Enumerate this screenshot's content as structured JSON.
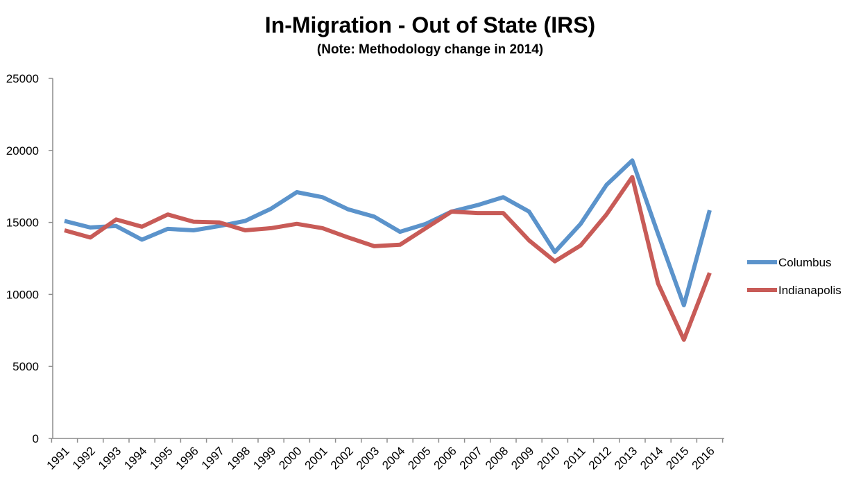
{
  "chart_data": {
    "type": "line",
    "title": "In-Migration - Out of State (IRS)",
    "subtitle": "(Note: Methodology change in 2014)",
    "xlabel": "",
    "ylabel": "",
    "ylim": [
      0,
      25000
    ],
    "yticks": [
      "0",
      "5000",
      "10000",
      "15000",
      "20000",
      "25000"
    ],
    "grid": false,
    "legend_position": "right",
    "categories": [
      "1991",
      "1992",
      "1993",
      "1994",
      "1995",
      "1996",
      "1997",
      "1998",
      "1999",
      "2000",
      "2001",
      "2002",
      "2003",
      "2004",
      "2005",
      "2006",
      "2007",
      "2008",
      "2009",
      "2010",
      "2011",
      "2012",
      "2013",
      "2014",
      "2015",
      "2016"
    ],
    "series": [
      {
        "name": "Columbus",
        "color": "#5b93cb",
        "values": [
          15100,
          14650,
          14750,
          13800,
          14550,
          14450,
          14750,
          15100,
          15950,
          17100,
          16750,
          15900,
          15400,
          14350,
          14900,
          15750,
          16200,
          16750,
          15750,
          12950,
          14900,
          17600,
          19300,
          14200,
          9250,
          15850
        ]
      },
      {
        "name": "Indianapolis",
        "color": "#c85b57",
        "values": [
          14450,
          13950,
          15200,
          14700,
          15550,
          15050,
          15000,
          14450,
          14600,
          14900,
          14600,
          13950,
          13350,
          13450,
          14600,
          15750,
          15650,
          15650,
          13750,
          12300,
          13400,
          15550,
          18150,
          10750,
          6850,
          11500
        ]
      }
    ]
  }
}
